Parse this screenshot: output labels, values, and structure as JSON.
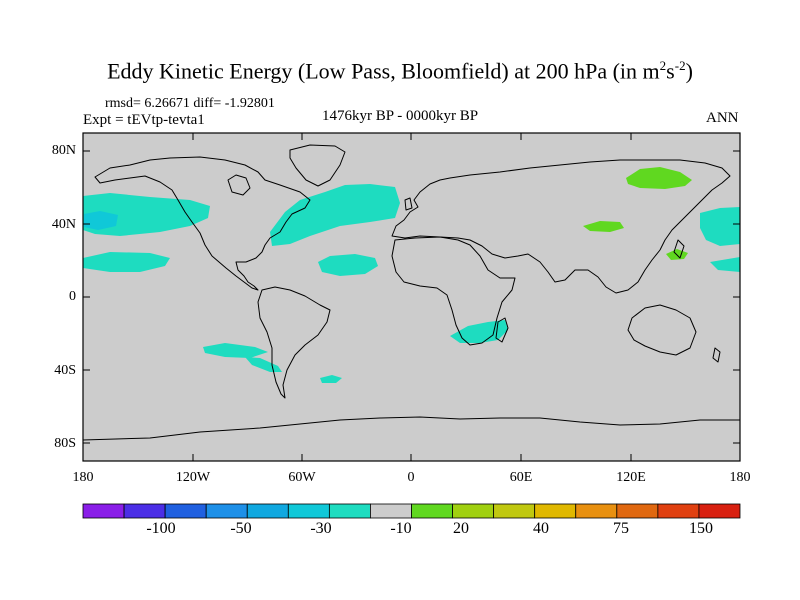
{
  "title": {
    "main": "Eddy Kinetic Energy (Low Pass, Bloomfield) at 200 hPa (in m",
    "sup1": "2",
    "mid": "s",
    "sup2": "-2",
    "end": ")"
  },
  "stats": "rmsd= 6.26671  diff= -1.92801",
  "expt": "Expt = tEVtp-tevta1",
  "period": "1476kyr BP - 0000kyr BP",
  "season": "ANN",
  "lat_labels": [
    "80N",
    "40N",
    "0",
    "40S",
    "80S"
  ],
  "lon_labels": [
    "180",
    "120W",
    "60W",
    "0",
    "60E",
    "120E",
    "180"
  ],
  "colorbar": {
    "labels": [
      "-100",
      "-50",
      "-30",
      "-10",
      "20",
      "40",
      "75",
      "150"
    ],
    "colors": [
      "#8a1ee8",
      "#4b2ee6",
      "#2060e0",
      "#1e90e8",
      "#10a8e0",
      "#10c8d8",
      "#1edcc0",
      "#cccccc",
      "#60d820",
      "#a0d010",
      "#c0c810",
      "#e0b800",
      "#e89010",
      "#e06810",
      "#e04010",
      "#d82010"
    ]
  },
  "map": {
    "ocean_color": "#cccccc",
    "anomaly_regions": [
      {
        "region": "North Pacific west",
        "value": -10
      },
      {
        "region": "North Pacific subtropics",
        "value": -10
      },
      {
        "region": "North Atlantic",
        "value": -10
      },
      {
        "region": "Central Atlantic",
        "value": -10
      },
      {
        "region": "Siberia",
        "value": 20
      },
      {
        "region": "Central Asia",
        "value": 20
      },
      {
        "region": "Japan",
        "value": 20
      },
      {
        "region": "Southern Africa",
        "value": -10
      },
      {
        "region": "South Pacific",
        "value": -10
      },
      {
        "region": "Southwest Pacific",
        "value": -10
      }
    ]
  }
}
